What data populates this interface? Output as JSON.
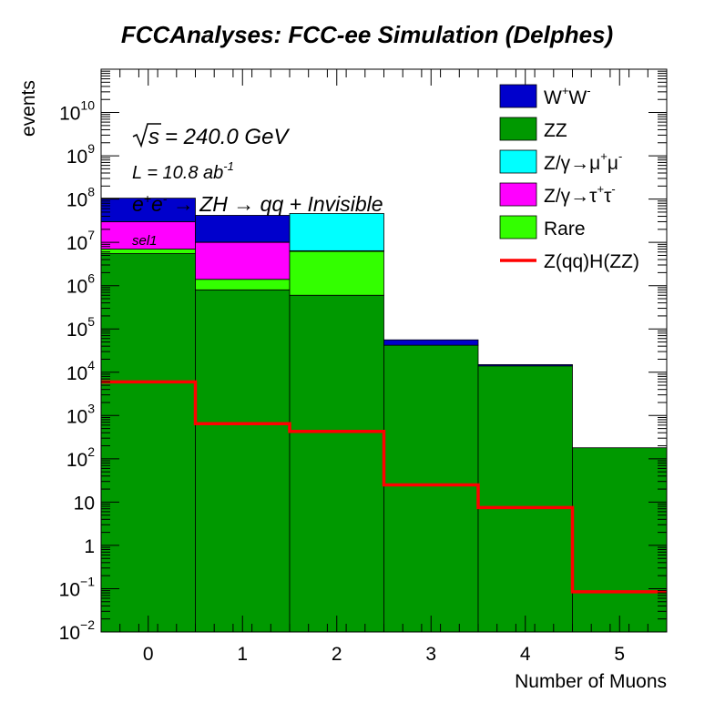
{
  "chart_data": {
    "type": "bar",
    "stacked": true,
    "title": "FCCAnalyses: FCC-ee Simulation (Delphes)",
    "xlabel": "Number of Muons",
    "ylabel": "events",
    "yscale": "log",
    "xlim": [
      -0.5,
      5.5
    ],
    "ylim": [
      0.01,
      100000000000.0
    ],
    "x_ticks": [
      "0",
      "1",
      "2",
      "3",
      "4",
      "5"
    ],
    "y_ticks": [
      {
        "value": 0.01,
        "base": "10",
        "exp": "−2"
      },
      {
        "value": 0.1,
        "base": "10",
        "exp": "−1"
      },
      {
        "value": 1,
        "base": "1",
        "exp": ""
      },
      {
        "value": 10,
        "base": "10",
        "exp": ""
      },
      {
        "value": 100,
        "base": "10",
        "exp": "2"
      },
      {
        "value": 1000,
        "base": "10",
        "exp": "3"
      },
      {
        "value": 10000,
        "base": "10",
        "exp": "4"
      },
      {
        "value": 100000,
        "base": "10",
        "exp": "5"
      },
      {
        "value": 1000000,
        "base": "10",
        "exp": "6"
      },
      {
        "value": 10000000,
        "base": "10",
        "exp": "7"
      },
      {
        "value": 100000000,
        "base": "10",
        "exp": "8"
      },
      {
        "value": 1000000000,
        "base": "10",
        "exp": "9"
      },
      {
        "value": 10000000000,
        "base": "10",
        "exp": "10"
      }
    ],
    "categories": [
      0,
      1,
      2,
      3,
      4,
      5
    ],
    "stack_order_bottom_to_top": [
      "ZZ",
      "Rare",
      "Z/γ→τ⁺τ⁻",
      "Z/γ→μ⁺μ⁻",
      "W⁺W⁻"
    ],
    "series": [
      {
        "name": "ZZ",
        "color": "#009900",
        "values": [
          5500000,
          800000,
          600000,
          42000,
          14000,
          180
        ]
      },
      {
        "name": "Rare",
        "color": "#33ff00",
        "values": [
          1500000,
          600000,
          5600000,
          0,
          0,
          0
        ]
      },
      {
        "name": "Z/γ→τ⁺τ⁻",
        "color": "#ff00ff",
        "values": [
          23000000,
          8600000,
          200000,
          0,
          0,
          0
        ]
      },
      {
        "name": "Z/γ→μ⁺μ⁻",
        "color": "#00ffff",
        "values": [
          0,
          100000,
          40000000,
          0,
          0,
          0
        ]
      },
      {
        "name": "W⁺W⁻",
        "color": "#0000cc",
        "values": [
          75000000,
          32000000,
          0,
          14000,
          1000,
          0
        ]
      }
    ],
    "signal": {
      "name": "Z(qq)H(ZZ)",
      "color": "#ff0000",
      "values": [
        6000,
        650,
        430,
        25,
        7.5,
        0.085
      ]
    },
    "legend": {
      "position": "top-right",
      "entries": [
        {
          "base": "W",
          "sup1": "+",
          "mid": "W",
          "sup2": "-",
          "color": "#0000cc",
          "kind": "box"
        },
        {
          "base": "ZZ",
          "color": "#009900",
          "kind": "box"
        },
        {
          "base": "Z/γ→μ",
          "sup1": "+",
          "mid": "μ",
          "sup2": "-",
          "color": "#00ffff",
          "kind": "box"
        },
        {
          "base": "Z/γ→τ",
          "sup1": "+",
          "mid": "τ",
          "sup2": "-",
          "color": "#ff00ff",
          "kind": "box"
        },
        {
          "base": "Rare",
          "color": "#33ff00",
          "kind": "box"
        },
        {
          "base": "Z(qq)H(ZZ)",
          "color": "#ff0000",
          "kind": "line"
        }
      ]
    },
    "annotations": {
      "sqrt_s": "= 240.0 GeV",
      "lumi_prefix": "L = 10.8 ab",
      "lumi_exp": "-1",
      "process": "→ ZH  → qq + Invisible",
      "selection": "sel1"
    },
    "grid": false
  }
}
